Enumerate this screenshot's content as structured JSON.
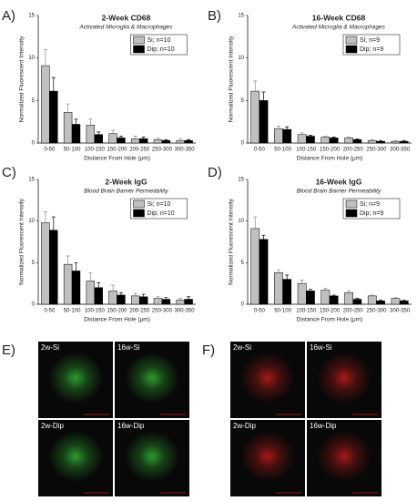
{
  "chart_data": [
    {
      "type": "bar",
      "panel_label": "A)",
      "title": "2-Week CD68",
      "subtitle": "Activated Microglia & Macrophages",
      "x_label": "Distance From Hole (μm)",
      "y_label": "Normalized Fluorescent Intensity",
      "categories": [
        "0-50",
        "50-100",
        "100-150",
        "150-200",
        "200-250",
        "250-300",
        "300-350"
      ],
      "series": [
        {
          "name": "Si; n=10",
          "color": "#c0c0c0",
          "values": [
            9.1,
            3.6,
            2.1,
            1.1,
            0.5,
            0.4,
            0.3
          ],
          "errors": [
            1.9,
            1.0,
            0.7,
            0.4,
            0.3,
            0.2,
            0.2
          ]
        },
        {
          "name": "Dip; n=10",
          "color": "#000000",
          "values": [
            6.1,
            2.2,
            1.0,
            0.6,
            0.5,
            0.3,
            0.3
          ],
          "errors": [
            1.6,
            0.6,
            0.3,
            0.2,
            0.2,
            0.1,
            0.1
          ]
        }
      ],
      "ylim": [
        0,
        15
      ],
      "yticks": [
        0,
        5,
        10,
        15
      ]
    },
    {
      "type": "bar",
      "panel_label": "B)",
      "title": "16-Week CD68",
      "subtitle": "Activated Microglia & Macrophages",
      "x_label": "Distance From Hole (μm)",
      "y_label": "Normalized Fluorescent Intensity",
      "categories": [
        "0-50",
        "50-100",
        "100-150",
        "150-200",
        "200-250",
        "250-300",
        "300-350"
      ],
      "series": [
        {
          "name": "Si; n=9",
          "color": "#c0c0c0",
          "values": [
            6.1,
            1.7,
            1.0,
            0.7,
            0.6,
            0.3,
            0.2
          ],
          "errors": [
            1.2,
            0.3,
            0.2,
            0.1,
            0.1,
            0.1,
            0.1
          ]
        },
        {
          "name": "Dip; n=9",
          "color": "#000000",
          "values": [
            5.0,
            1.6,
            0.8,
            0.6,
            0.4,
            0.2,
            0.2
          ],
          "errors": [
            1.0,
            0.3,
            0.1,
            0.1,
            0.1,
            0.1,
            0.1
          ]
        }
      ],
      "ylim": [
        0,
        15
      ],
      "yticks": [
        0,
        5,
        10,
        15
      ]
    },
    {
      "type": "bar",
      "panel_label": "C)",
      "title": "2-Week IgG",
      "subtitle": "Blood Brain Barrier Permeability",
      "x_label": "Distance From Hole (μm)",
      "y_label": "Normalized Fluorescent Intensity",
      "categories": [
        "0-50",
        "50-100",
        "100-150",
        "150-200",
        "200-250",
        "250-300",
        "300-350"
      ],
      "series": [
        {
          "name": "Si; n=10",
          "color": "#c0c0c0",
          "values": [
            9.8,
            4.8,
            2.8,
            1.6,
            1.0,
            0.7,
            0.5
          ],
          "errors": [
            1.3,
            1.0,
            1.0,
            0.7,
            0.3,
            0.2,
            0.2
          ]
        },
        {
          "name": "Dip; n=10",
          "color": "#000000",
          "values": [
            8.9,
            4.0,
            2.0,
            1.1,
            0.9,
            0.6,
            0.6
          ],
          "errors": [
            1.6,
            1.0,
            0.6,
            0.3,
            0.3,
            0.2,
            0.3
          ]
        }
      ],
      "ylim": [
        0,
        15
      ],
      "yticks": [
        0,
        5,
        10,
        15
      ]
    },
    {
      "type": "bar",
      "panel_label": "D)",
      "title": "16-Week IgG",
      "subtitle": "Blood Brain Barrier Permeability",
      "x_label": "Distance From Hole (μm)",
      "y_label": "Normalized Fluorescent Intensity",
      "categories": [
        "0-50",
        "50-100",
        "100-150",
        "150-200",
        "200-250",
        "250-300",
        "300-350"
      ],
      "series": [
        {
          "name": "Si; n=9",
          "color": "#c0c0c0",
          "values": [
            9.1,
            3.8,
            2.5,
            1.7,
            1.4,
            1.0,
            0.7
          ],
          "errors": [
            1.4,
            0.3,
            0.4,
            0.2,
            0.2,
            0.1,
            0.1
          ]
        },
        {
          "name": "Dip; n=9",
          "color": "#000000",
          "values": [
            7.8,
            3.0,
            1.6,
            1.0,
            0.6,
            0.4,
            0.4
          ],
          "errors": [
            0.5,
            0.5,
            0.2,
            0.1,
            0.1,
            0.1,
            0.1
          ]
        }
      ],
      "ylim": [
        0,
        15
      ],
      "yticks": [
        0,
        5,
        10,
        15
      ]
    }
  ],
  "image_panels": [
    {
      "panel_label": "E)",
      "color": "#3cd23c",
      "tiles": [
        "2w-Si",
        "16w-Si",
        "2w-Dip",
        "16w-Dip"
      ]
    },
    {
      "panel_label": "F)",
      "color": "#e02020",
      "tiles": [
        "2w-Si",
        "16w-Si",
        "2w-Dip",
        "16w-Dip"
      ]
    }
  ]
}
